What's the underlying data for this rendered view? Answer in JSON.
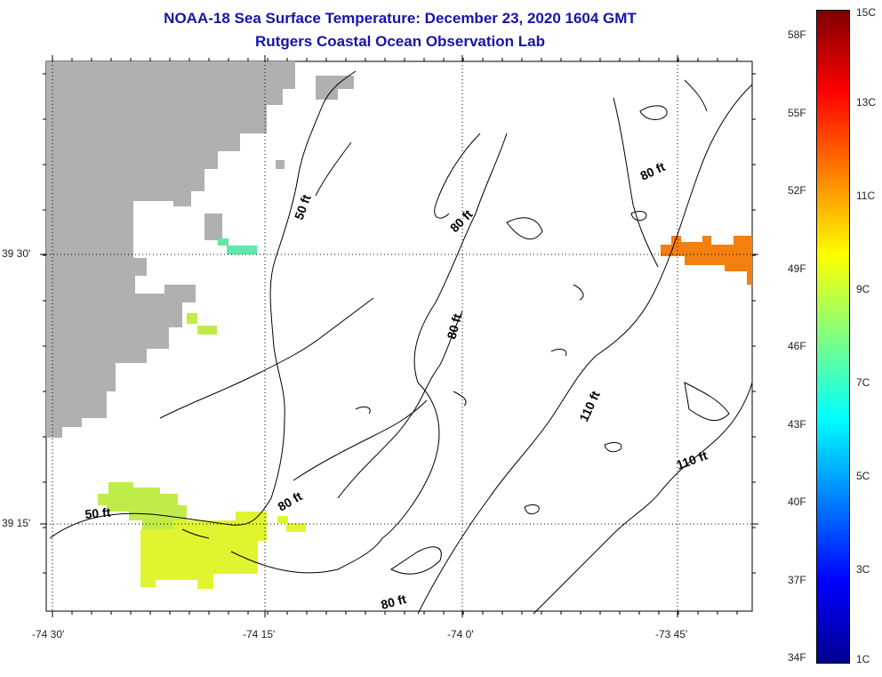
{
  "title": {
    "line1": "NOAA-18 Sea Surface Temperature:  December 23, 2020 1604 GMT",
    "line2": "Rutgers Coastal Ocean Observation Lab"
  },
  "axes": {
    "x_ticks": [
      "-74 30'",
      "-74 15'",
      "-74 0'",
      "-73 45'"
    ],
    "y_ticks": [
      "39 30'",
      "39 15'"
    ]
  },
  "contours": {
    "labels": [
      "50 ft",
      "50 ft",
      "80 ft",
      "80 ft",
      "80 ft",
      "80 ft",
      "80 ft",
      "110 ft",
      "110 ft"
    ]
  },
  "colorbar": {
    "fahrenheit": [
      "58F",
      "55F",
      "52F",
      "49F",
      "46F",
      "43F",
      "40F",
      "37F",
      "34F"
    ],
    "celsius": [
      "15C",
      "13C",
      "11C",
      "9C",
      "7C",
      "5C",
      "3C",
      "1C"
    ],
    "range_c": [
      1,
      15
    ],
    "stops": [
      "#00008f",
      "#0000ff",
      "#0080ff",
      "#00ffff",
      "#80ff80",
      "#ffff00",
      "#ff8000",
      "#ff0000",
      "#800000"
    ]
  },
  "colors": {
    "land": "#b0b0b0",
    "title": "#1515a8",
    "sst_green": "#5ee9a8",
    "sst_yellowgreen": "#c0ec4a",
    "sst_yellow": "#e0f530",
    "sst_orange": "#f2800e"
  }
}
